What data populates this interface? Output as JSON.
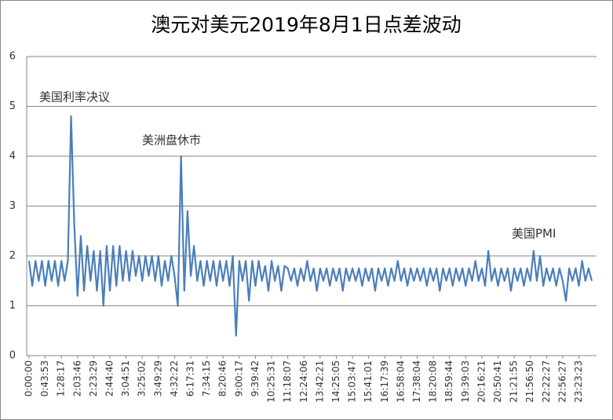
{
  "chart_data": {
    "type": "line",
    "title": "澳元对美元2019年8月1日点差波动",
    "categories": [
      "0:00:00",
      null,
      null,
      null,
      null,
      "0:43:53",
      null,
      null,
      null,
      null,
      "1:28:17",
      null,
      null,
      null,
      null,
      "2:03:46",
      null,
      null,
      null,
      null,
      "2:23:29",
      null,
      null,
      null,
      null,
      "2:44:40",
      null,
      null,
      null,
      null,
      "3:04:51",
      null,
      null,
      null,
      null,
      "3:25:02",
      null,
      null,
      null,
      null,
      "3:49:29",
      null,
      null,
      null,
      null,
      "4:32:22",
      null,
      null,
      null,
      null,
      "6:17:31",
      null,
      null,
      null,
      null,
      "7:34:15",
      null,
      null,
      null,
      null,
      "8:20:46",
      null,
      null,
      null,
      null,
      "9:00:17",
      null,
      null,
      null,
      null,
      "9:39:42",
      null,
      null,
      null,
      null,
      "10:25:31",
      null,
      null,
      null,
      null,
      "11:18:07",
      null,
      null,
      null,
      null,
      "12:24:06",
      null,
      null,
      null,
      null,
      "13:42:21",
      null,
      null,
      null,
      null,
      "14:25:05",
      null,
      null,
      null,
      null,
      "15:03:47",
      null,
      null,
      null,
      null,
      "15:41:01",
      null,
      null,
      null,
      null,
      "16:17:39",
      null,
      null,
      null,
      null,
      "16:58:04",
      null,
      null,
      null,
      null,
      "17:38:04",
      null,
      null,
      null,
      null,
      "18:20:08",
      null,
      null,
      null,
      null,
      "18:59:44",
      null,
      null,
      null,
      null,
      "19:39:03",
      null,
      null,
      null,
      null,
      "20:16:21",
      null,
      null,
      null,
      null,
      "20:50:41",
      null,
      null,
      null,
      null,
      "21:21:55",
      null,
      null,
      null,
      null,
      "21:56:50",
      null,
      null,
      null,
      null,
      "22:22:27",
      null,
      null,
      null,
      null,
      "22:56:27",
      null,
      null,
      null,
      null,
      "23:23:23",
      null,
      null,
      null,
      null
    ],
    "values": [
      1.9,
      1.4,
      1.9,
      1.5,
      1.9,
      1.4,
      1.9,
      1.5,
      1.9,
      1.4,
      1.9,
      1.5,
      1.9,
      4.8,
      2.6,
      1.2,
      2.4,
      1.3,
      2.2,
      1.5,
      2.1,
      1.3,
      2.1,
      1.0,
      2.2,
      1.3,
      2.2,
      1.4,
      2.2,
      1.5,
      2.1,
      1.5,
      2.1,
      1.6,
      2.0,
      1.5,
      2.0,
      1.6,
      2.0,
      1.5,
      2.0,
      1.4,
      1.9,
      1.5,
      2.0,
      1.6,
      1.0,
      4.0,
      1.3,
      2.9,
      1.6,
      2.2,
      1.5,
      1.9,
      1.4,
      1.9,
      1.5,
      1.9,
      1.4,
      1.9,
      1.5,
      1.9,
      1.4,
      2.0,
      0.4,
      1.9,
      1.5,
      1.9,
      1.1,
      1.9,
      1.4,
      1.9,
      1.5,
      1.8,
      1.3,
      1.9,
      1.5,
      1.8,
      1.3,
      1.8,
      1.75,
      1.5,
      1.75,
      1.4,
      1.75,
      1.5,
      1.9,
      1.5,
      1.75,
      1.3,
      1.75,
      1.5,
      1.75,
      1.4,
      1.75,
      1.5,
      1.75,
      1.3,
      1.75,
      1.5,
      1.75,
      1.5,
      1.75,
      1.4,
      1.75,
      1.5,
      1.75,
      1.3,
      1.75,
      1.5,
      1.75,
      1.4,
      1.75,
      1.5,
      1.9,
      1.5,
      1.75,
      1.4,
      1.75,
      1.5,
      1.75,
      1.5,
      1.75,
      1.4,
      1.75,
      1.5,
      1.75,
      1.3,
      1.75,
      1.5,
      1.75,
      1.4,
      1.75,
      1.5,
      1.75,
      1.4,
      1.75,
      1.5,
      1.9,
      1.5,
      1.75,
      1.4,
      2.1,
      1.5,
      1.75,
      1.4,
      1.75,
      1.5,
      1.75,
      1.3,
      1.75,
      1.5,
      1.75,
      1.4,
      1.75,
      1.5,
      2.1,
      1.5,
      2.0,
      1.4,
      1.75,
      1.5,
      1.75,
      1.4,
      1.75,
      1.5,
      1.1,
      1.75,
      1.5,
      1.75,
      1.4,
      1.9,
      1.5,
      1.75,
      1.5
    ],
    "color": "#4a7ebb",
    "ylim": [
      0,
      6
    ],
    "yticks": [
      0,
      1,
      2,
      3,
      4,
      5,
      6
    ],
    "grid": true,
    "annotations": [
      "美国利率决议",
      "美洲盘休市",
      "美国PMI"
    ]
  }
}
